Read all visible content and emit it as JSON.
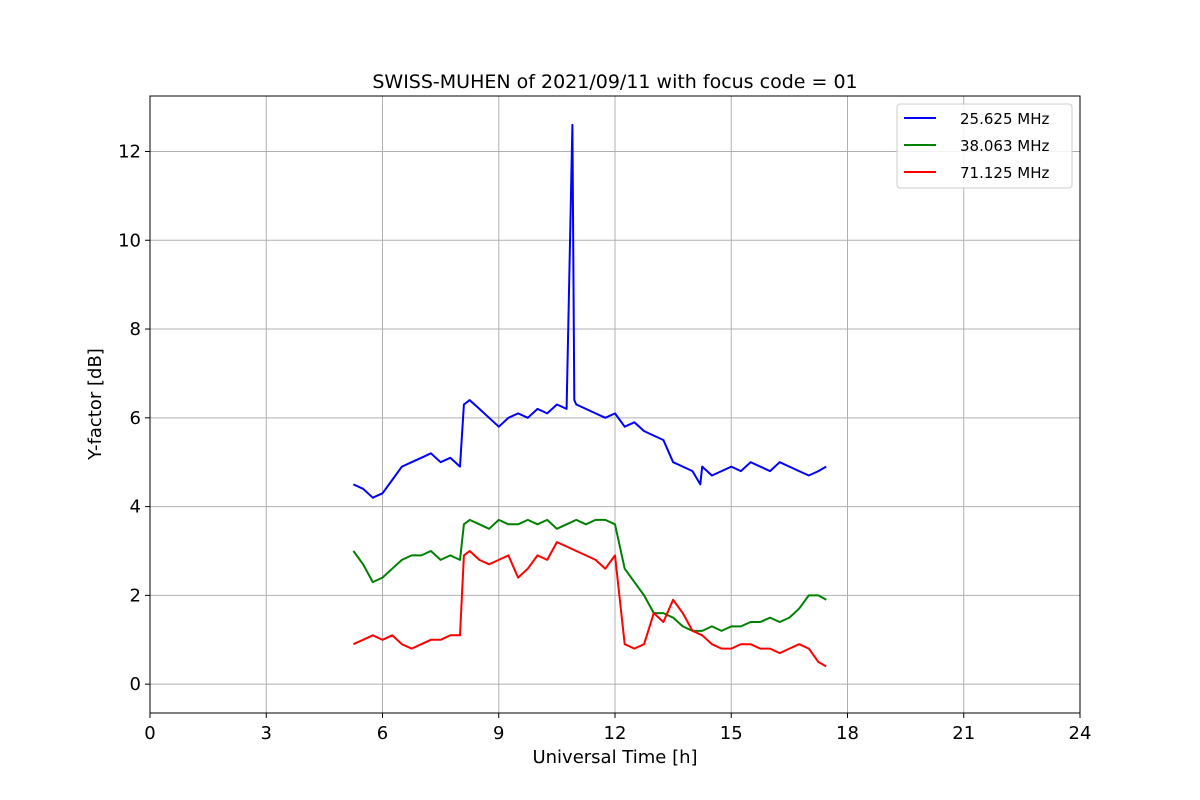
{
  "chart_data": {
    "type": "line",
    "title": "SWISS-MUHEN of 2021/09/11 with focus code = 01",
    "xlabel": "Universal Time [h]",
    "ylabel": "Y-factor [dB]",
    "xlim": [
      0,
      24
    ],
    "ylim": [
      -0.65,
      13.25
    ],
    "xticks": [
      0,
      3,
      6,
      9,
      12,
      15,
      18,
      21,
      24
    ],
    "yticks": [
      0,
      2,
      4,
      6,
      8,
      10,
      12
    ],
    "grid": true,
    "legend_position": "top-right",
    "series": [
      {
        "name": "25.625 MHz",
        "color": "#0000ff",
        "x": [
          5.25,
          5.5,
          5.75,
          6.0,
          6.25,
          6.5,
          6.75,
          7.0,
          7.25,
          7.5,
          7.75,
          8.0,
          8.1,
          8.25,
          8.5,
          8.75,
          9.0,
          9.25,
          9.5,
          9.75,
          10.0,
          10.25,
          10.5,
          10.75,
          10.9,
          10.95,
          11.0,
          11.25,
          11.5,
          11.75,
          12.0,
          12.25,
          12.5,
          12.75,
          13.0,
          13.25,
          13.5,
          13.75,
          14.0,
          14.2,
          14.25,
          14.5,
          14.75,
          15.0,
          15.25,
          15.5,
          15.75,
          16.0,
          16.25,
          16.5,
          16.75,
          17.0,
          17.25,
          17.45
        ],
        "y": [
          4.5,
          4.4,
          4.2,
          4.3,
          4.6,
          4.9,
          5.0,
          5.1,
          5.2,
          5.0,
          5.1,
          4.9,
          6.3,
          6.4,
          6.2,
          6.0,
          5.8,
          6.0,
          6.1,
          6.0,
          6.2,
          6.1,
          6.3,
          6.2,
          12.6,
          6.4,
          6.3,
          6.2,
          6.1,
          6.0,
          6.1,
          5.8,
          5.9,
          5.7,
          5.6,
          5.5,
          5.0,
          4.9,
          4.8,
          4.5,
          4.9,
          4.7,
          4.8,
          4.9,
          4.8,
          5.0,
          4.9,
          4.8,
          5.0,
          4.9,
          4.8,
          4.7,
          4.8,
          4.9
        ]
      },
      {
        "name": "38.063 MHz",
        "color": "#008000",
        "x": [
          5.25,
          5.5,
          5.75,
          6.0,
          6.25,
          6.5,
          6.75,
          7.0,
          7.25,
          7.5,
          7.75,
          8.0,
          8.1,
          8.25,
          8.5,
          8.75,
          9.0,
          9.25,
          9.5,
          9.75,
          10.0,
          10.25,
          10.5,
          10.75,
          11.0,
          11.25,
          11.5,
          11.75,
          12.0,
          12.25,
          12.5,
          12.75,
          13.0,
          13.25,
          13.5,
          13.75,
          14.0,
          14.25,
          14.5,
          14.75,
          15.0,
          15.25,
          15.5,
          15.75,
          16.0,
          16.25,
          16.5,
          16.75,
          17.0,
          17.25,
          17.45
        ],
        "y": [
          3.0,
          2.7,
          2.3,
          2.4,
          2.6,
          2.8,
          2.9,
          2.9,
          3.0,
          2.8,
          2.9,
          2.8,
          3.6,
          3.7,
          3.6,
          3.5,
          3.7,
          3.6,
          3.6,
          3.7,
          3.6,
          3.7,
          3.5,
          3.6,
          3.7,
          3.6,
          3.7,
          3.7,
          3.6,
          2.6,
          2.3,
          2.0,
          1.6,
          1.6,
          1.5,
          1.3,
          1.2,
          1.2,
          1.3,
          1.2,
          1.3,
          1.3,
          1.4,
          1.4,
          1.5,
          1.4,
          1.5,
          1.7,
          2.0,
          2.0,
          1.9
        ]
      },
      {
        "name": "71.125 MHz",
        "color": "#ff0000",
        "x": [
          5.25,
          5.5,
          5.75,
          6.0,
          6.25,
          6.5,
          6.75,
          7.0,
          7.25,
          7.5,
          7.75,
          8.0,
          8.1,
          8.25,
          8.5,
          8.75,
          9.0,
          9.25,
          9.5,
          9.75,
          10.0,
          10.25,
          10.5,
          10.75,
          11.0,
          11.25,
          11.5,
          11.75,
          12.0,
          12.25,
          12.5,
          12.75,
          13.0,
          13.25,
          13.5,
          13.75,
          14.0,
          14.25,
          14.5,
          14.75,
          15.0,
          15.25,
          15.5,
          15.75,
          16.0,
          16.25,
          16.5,
          16.75,
          17.0,
          17.25,
          17.45
        ],
        "y": [
          0.9,
          1.0,
          1.1,
          1.0,
          1.1,
          0.9,
          0.8,
          0.9,
          1.0,
          1.0,
          1.1,
          1.1,
          2.9,
          3.0,
          2.8,
          2.7,
          2.8,
          2.9,
          2.4,
          2.6,
          2.9,
          2.8,
          3.2,
          3.1,
          3.0,
          2.9,
          2.8,
          2.6,
          2.9,
          0.9,
          0.8,
          0.9,
          1.6,
          1.4,
          1.9,
          1.6,
          1.2,
          1.1,
          0.9,
          0.8,
          0.8,
          0.9,
          0.9,
          0.8,
          0.8,
          0.7,
          0.8,
          0.9,
          0.8,
          0.5,
          0.4
        ]
      }
    ]
  }
}
